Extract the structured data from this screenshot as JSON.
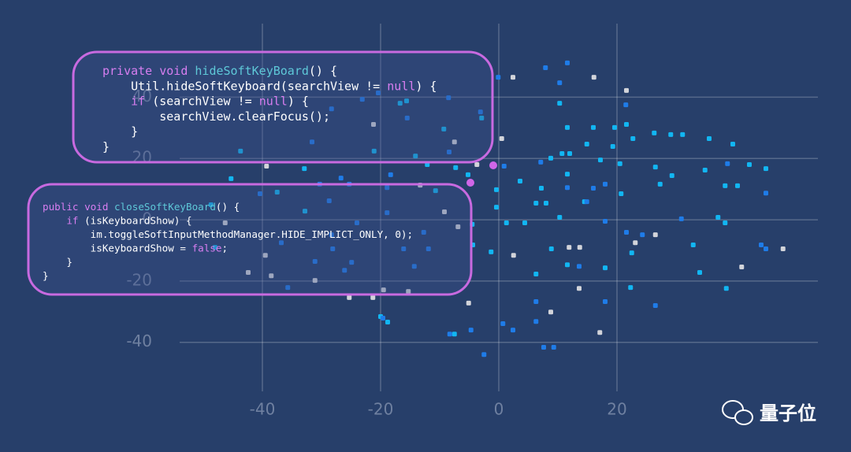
{
  "chart_data": {
    "type": "scatter",
    "xlim": [
      -54,
      54
    ],
    "ylim": [
      -56,
      64
    ],
    "xticks": [
      -40,
      -20,
      0,
      20
    ],
    "yticks": [
      40,
      20,
      0,
      -20,
      -40
    ],
    "grid": true,
    "series": [
      {
        "color": "#d2d4da",
        "x": [
          2.4,
          16.1,
          21.6,
          0.5,
          -21.2,
          -39.3,
          -3.7,
          2.5,
          11.9,
          13.7,
          26.5,
          48.1,
          41.1,
          13.6,
          8.8,
          17.1,
          -5.1,
          -15.3,
          -21.3,
          -25.3,
          -31.1,
          -38.5,
          -42.4,
          -39.5,
          -46.3,
          -13.3,
          -9.2,
          -6.9,
          -19.5,
          -7.5,
          23.1
        ],
        "y": [
          46.5,
          46.5,
          42.2,
          26.5,
          31.1,
          17.5,
          18.0,
          -11.6,
          -9.0,
          -9.0,
          -4.9,
          -9.5,
          -15.4,
          -22.4,
          -30.1,
          -36.8,
          -27.2,
          -23.4,
          -25.4,
          -25.4,
          -19.8,
          -18.3,
          -17.2,
          -11.6,
          -1.0,
          11.3,
          2.6,
          -2.3,
          -22.9,
          25.4,
          -7.5
        ]
      },
      {
        "color": "#12b6f2",
        "x": [
          11.6,
          16.0,
          19.6,
          21.6,
          22.7,
          26.3,
          29.1,
          31.1,
          35.6,
          39.6,
          42.4,
          45.2,
          37.1,
          38.3,
          32.9,
          34.0,
          38.5,
          22.5,
          22.3,
          18.0,
          14.5,
          11.6,
          10.3,
          8.8,
          10.7,
          12.0,
          14.9,
          19.3,
          17.2,
          20.5,
          20.7,
          26.5,
          27.3,
          29.3,
          34.9,
          38.3,
          40.4,
          3.6,
          7.2,
          6.3,
          8.0,
          10.3,
          1.3,
          4.4,
          8.9,
          11.6,
          6.3,
          -0.4,
          -0.4,
          -5.2,
          -12.1,
          -14.1,
          -15.6,
          -16.7,
          -9.3,
          -7.3,
          -32.9,
          -43.7,
          -45.3,
          -48.0,
          -18.8,
          -20.0,
          -7.5,
          -2.9,
          -21.1,
          -32.8,
          -37.5,
          -48.7,
          -1.3,
          -4.5,
          -10.7,
          -4.4
        ],
        "y": [
          30.1,
          30.1,
          30.1,
          31.1,
          26.5,
          28.3,
          27.8,
          27.8,
          26.5,
          24.7,
          18.0,
          16.7,
          0.8,
          -1.0,
          -8.2,
          -17.2,
          -22.4,
          -10.8,
          -22.1,
          -15.7,
          5.9,
          14.9,
          38.0,
          20.1,
          21.6,
          21.6,
          24.7,
          23.9,
          19.5,
          18.3,
          8.5,
          17.2,
          11.6,
          14.4,
          16.2,
          11.1,
          11.1,
          12.6,
          10.3,
          5.4,
          5.4,
          0.8,
          -1.0,
          -1.0,
          -9.5,
          -14.7,
          -17.7,
          9.8,
          4.1,
          14.7,
          18.0,
          20.8,
          38.8,
          38.0,
          29.6,
          17.0,
          16.7,
          22.4,
          13.4,
          -9.0,
          -33.4,
          -31.6,
          -37.3,
          33.2,
          22.4,
          2.8,
          9.0,
          4.9,
          -10.5,
          -1.5,
          9.5,
          -8.2
        ]
      },
      {
        "color": "#1f7ce8",
        "x": [
          -0.1,
          7.9,
          11.6,
          10.3,
          21.5,
          0.9,
          11.6,
          16.0,
          18.0,
          7.1,
          14.9,
          18.0,
          21.6,
          24.3,
          30.9,
          38.7,
          45.2,
          44.4,
          45.2,
          26.5,
          18.0,
          13.6,
          6.3,
          6.3,
          7.6,
          9.3,
          2.4,
          0.7,
          -2.5,
          -4.7,
          -8.3,
          -19.6,
          -14.3,
          -16.1,
          -11.9,
          -24.9,
          -28.1,
          -31.1,
          -28.3,
          -35.7,
          -26.1,
          -36.8,
          -40.4,
          -30.3,
          -28.7,
          -26.7,
          -25.3,
          -18.9,
          -18.3,
          -15.5,
          -8.5,
          -8.4,
          -3.1,
          -28.3,
          -23.1,
          -31.6,
          -20.4,
          -24.0,
          -18.9,
          -12.7
        ],
        "y": [
          46.5,
          49.6,
          51.2,
          44.7,
          37.5,
          17.5,
          10.5,
          10.3,
          11.6,
          18.8,
          5.9,
          -0.5,
          -4.1,
          -4.9,
          0.3,
          18.3,
          8.7,
          -8.2,
          -9.5,
          -28.0,
          -26.7,
          -15.2,
          -26.7,
          -33.2,
          -41.6,
          -41.6,
          -36.0,
          -33.9,
          -44.0,
          -36.0,
          -37.3,
          -32.1,
          -15.2,
          -9.5,
          -9.5,
          -13.9,
          -9.5,
          -13.6,
          -4.9,
          -22.1,
          -16.5,
          -7.5,
          8.5,
          11.6,
          6.2,
          13.6,
          11.6,
          10.5,
          14.7,
          33.2,
          39.8,
          22.1,
          35.2,
          36.2,
          39.3,
          25.4,
          41.4,
          -1.0,
          2.3,
          -4.1
        ]
      }
    ],
    "code_blocks": [
      {
        "lines": [
          [
            {
              "text": "private void ",
              "color": "#d77ef0"
            },
            {
              "text": "hideSoftKeyBoard",
              "color": "#5ec8d8"
            },
            {
              "text": "() {",
              "color": "#ffffff"
            }
          ],
          [
            {
              "text": "    Util.hideSoftKeyboard(searchView != ",
              "color": "#ffffff"
            },
            {
              "text": "null",
              "color": "#d77ef0"
            },
            {
              "text": ") {",
              "color": "#ffffff"
            }
          ],
          [
            {
              "text": "    if",
              "color": "#d77ef0"
            },
            {
              "text": " (searchView != ",
              "color": "#ffffff"
            },
            {
              "text": "null",
              "color": "#d77ef0"
            },
            {
              "text": ") {",
              "color": "#ffffff"
            }
          ],
          [
            {
              "text": "        searchView.clearFocus();",
              "color": "#ffffff"
            }
          ],
          [
            {
              "text": "    }",
              "color": "#ffffff"
            }
          ],
          [
            {
              "text": "}",
              "color": "#ffffff"
            }
          ]
        ]
      },
      {
        "lines": [
          [
            {
              "text": "public void ",
              "color": "#d77ef0"
            },
            {
              "text": "closeSoftKeyBoard",
              "color": "#5ec8d8"
            },
            {
              "text": "() {",
              "color": "#ffffff"
            }
          ],
          [
            {
              "text": "    if",
              "color": "#d77ef0"
            },
            {
              "text": " (isKeyboardShow) {",
              "color": "#ffffff"
            }
          ],
          [
            {
              "text": "        im.toggleSoftInputMethodManager.HIDE_IMPLICT_ONLY, 0);",
              "color": "#ffffff"
            }
          ],
          [
            {
              "text": "        isKeyboardShow = ",
              "color": "#ffffff"
            },
            {
              "text": "false",
              "color": "#d77ef0"
            },
            {
              "text": ";",
              "color": "#ffffff"
            }
          ],
          [
            {
              "text": "    }",
              "color": "#ffffff"
            }
          ],
          [
            {
              "text": "}",
              "color": "#ffffff"
            }
          ]
        ]
      }
    ]
  },
  "watermark": "量子位"
}
